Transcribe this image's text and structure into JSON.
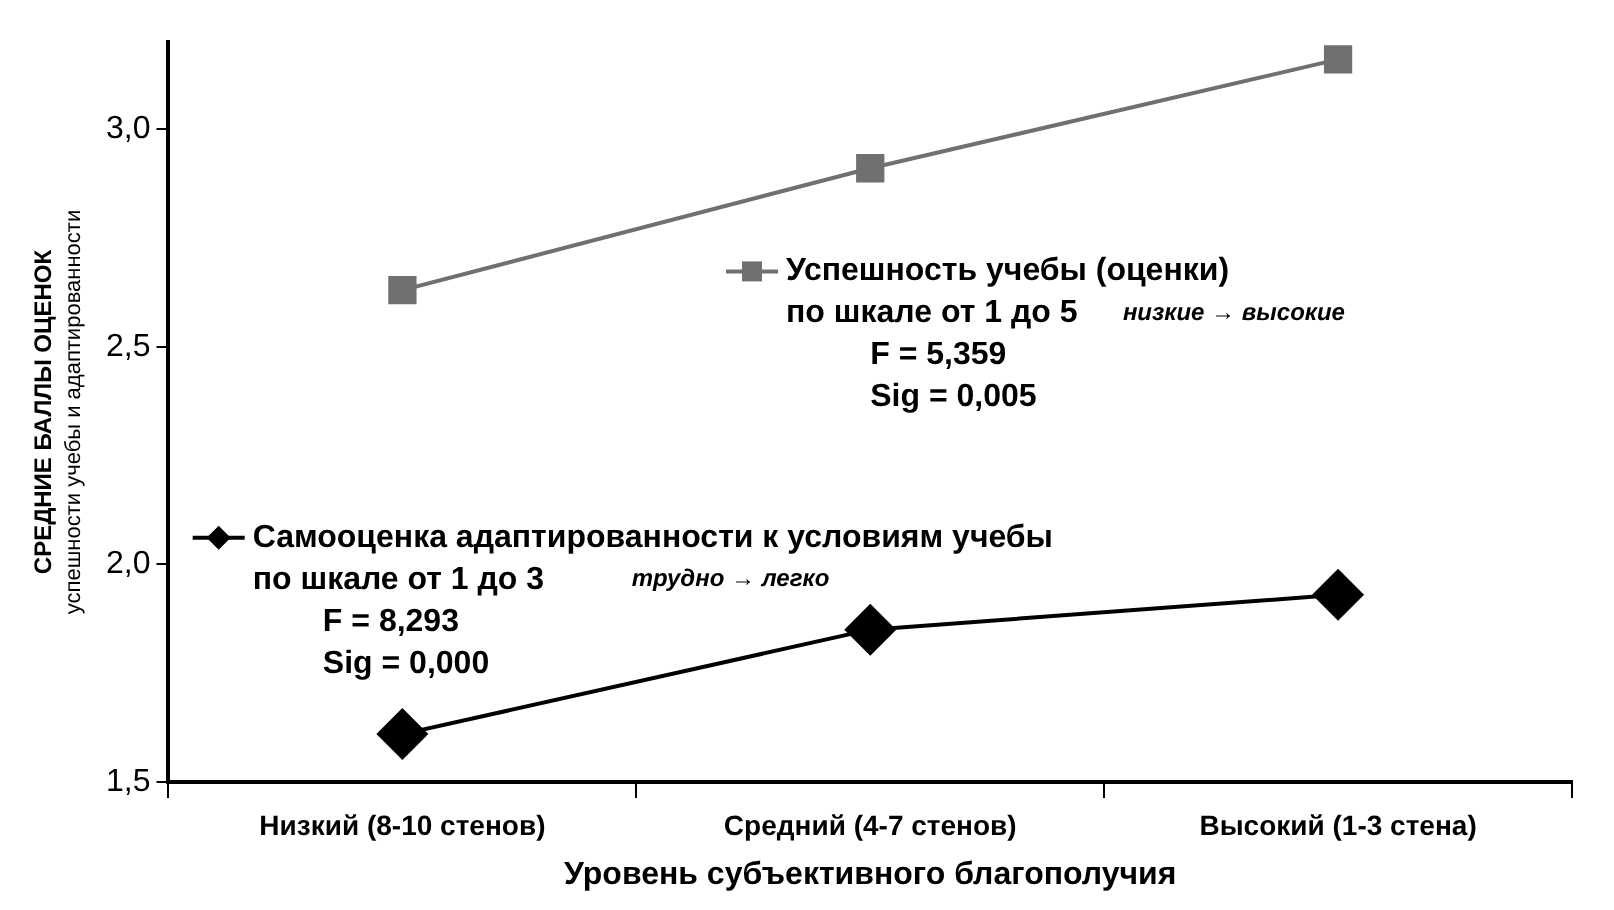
{
  "chart_data": {
    "type": "line",
    "categories": [
      "Низкий (8-10 стенов)",
      "Средний (4-7 стенов)",
      "Высокий (1-3 стена)"
    ],
    "xlabel": "Уровень субъективного благополучия",
    "ylabel": "СРЕДНИЕ БАЛЛЫ ОЦЕНОК\nуспешности учебы и адаптированности",
    "ylim": [
      1.5,
      3.2
    ],
    "yticks": [
      {
        "value": 1.5,
        "label": "1,5"
      },
      {
        "value": 2.0,
        "label": "2,0"
      },
      {
        "value": 2.5,
        "label": "2,5"
      },
      {
        "value": 3.0,
        "label": "3,0"
      }
    ],
    "grid": false,
    "legend": "left",
    "series": [
      {
        "name": "Успешность учебы (оценки)",
        "color": "#707070",
        "marker": "square",
        "values": [
          2.63,
          2.91,
          3.16
        ]
      },
      {
        "name": "Самооценка адаптированности к условиям учебы",
        "color": "#000000",
        "marker": "diamond",
        "values": [
          1.61,
          1.85,
          1.93
        ]
      }
    ],
    "annotations": [
      "по шкале от 1 до 5",
      "низкие → высокие",
      "F = 5,359",
      "Sig = 0,005",
      "по шкале от 1 до 3",
      "трудно → легко",
      "F = 8,293",
      "Sig = 0,000"
    ]
  }
}
